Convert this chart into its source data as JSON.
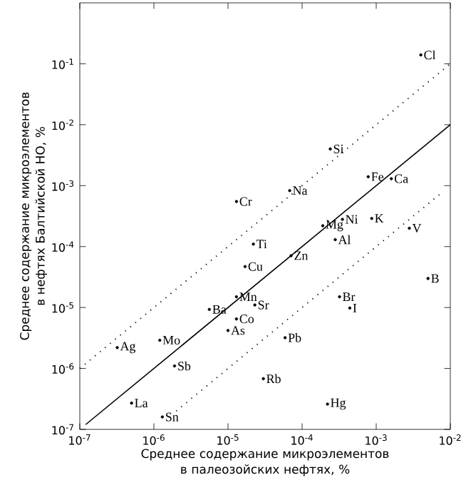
{
  "chart_data": {
    "type": "scatter",
    "xlabel": "Среднее содержание микроэлементов в палеозойских нефтях, %",
    "ylabel": "Среднее содержание микроэлементов в нефтях Балтийской НО, %",
    "log": "xy",
    "grid": false,
    "xlim": [
      1e-07,
      0.01
    ],
    "ylim": [
      1e-07,
      1
    ],
    "xticks": [
      {
        "value": 1e-07,
        "label": "10$^{-7}$"
      },
      {
        "value": 1e-06,
        "label": "10$^{-6}$"
      },
      {
        "value": 1e-05,
        "label": "10$^{-5}$"
      },
      {
        "value": 0.0001,
        "label": "10$^{-4}$"
      },
      {
        "value": 0.001,
        "label": "10$^{-3}$"
      },
      {
        "value": 0.01,
        "label": "10$^{-2}$"
      }
    ],
    "yticks": [
      {
        "value": 1e-07,
        "label": "10$^{-7}$"
      },
      {
        "value": 1e-06,
        "label": "10$^{-6}$"
      },
      {
        "value": 1e-05,
        "label": "10$^{-5}$"
      },
      {
        "value": 0.0001,
        "label": "10$^{-4}$"
      },
      {
        "value": 0.001,
        "label": "10$^{-3}$"
      },
      {
        "value": 0.01,
        "label": "10$^{-2}$"
      },
      {
        "value": 0.1,
        "label": "10$^{-1}$"
      }
    ],
    "series": [
      {
        "color": "#000000",
        "marker": "circle",
        "x": [
          0.004,
          0.00024,
          0.00078,
          0.0016,
          6.8e-05,
          1.3e-05,
          0.00035,
          0.00019,
          0.00087,
          0.00028,
          0.0028,
          2.2e-05,
          7.1e-05,
          1.7e-05,
          0.005,
          1.3e-05,
          2.3e-05,
          0.00032,
          0.00044,
          5.6e-06,
          1.3e-05,
          1e-05,
          5.9e-05,
          3.2e-07,
          1.2e-06,
          1.9e-06,
          3e-05,
          5e-07,
          0.00022,
          1.3e-06
        ],
        "values": [
          0.14,
          0.004,
          0.0014,
          0.0013,
          0.00083,
          0.00055,
          0.00028,
          0.00022,
          0.00029,
          0.00013,
          0.0002,
          0.00011,
          7.1e-05,
          4.7e-05,
          3e-05,
          1.5e-05,
          1.1e-05,
          1.5e-05,
          9.8e-06,
          9.3e-06,
          6.5e-06,
          4.2e-06,
          3.2e-06,
          2.2e-06,
          2.9e-06,
          1.1e-06,
          6.8e-07,
          2.7e-07,
          2.6e-07,
          1.6e-07
        ],
        "value_labels": [
          "Cl",
          "Si",
          "Fe",
          "Ca",
          "Na",
          "Cr",
          "Ni",
          "Mg",
          "K",
          "Al",
          "V",
          "Ti",
          "Zn",
          "Cu",
          "B",
          "Mn",
          "Sr",
          "Br",
          "I",
          "Ba",
          "Co",
          "As",
          "Pb",
          "Ag",
          "Mo",
          "Sb",
          "Rb",
          "La",
          "Hg",
          "Sn"
        ]
      },
      {
        "type": "line",
        "color": "#000000",
        "line_style": "solid",
        "marker": "none",
        "x": [
          1.2e-07,
          0.01
        ],
        "values": [
          1.2e-07,
          0.01
        ]
      },
      {
        "type": "line",
        "color": "#000000",
        "line_style": "dotted",
        "marker": "none",
        "x": [
          1e-07,
          0.01
        ],
        "values": [
          1e-06,
          0.1
        ]
      },
      {
        "type": "line",
        "color": "#000000",
        "line_style": "dotted",
        "marker": "none",
        "x": [
          2e-06,
          0.008
        ],
        "values": [
          2e-07,
          0.0008
        ]
      }
    ]
  }
}
